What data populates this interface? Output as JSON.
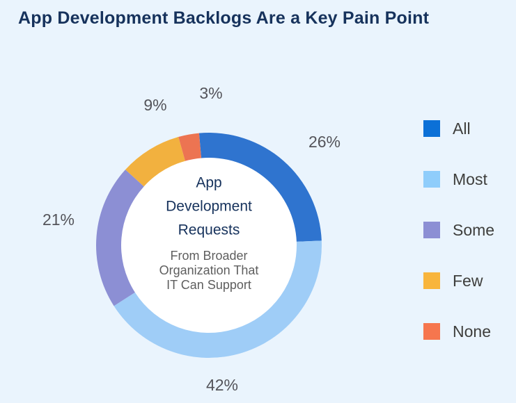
{
  "chart_data": {
    "type": "pie",
    "title": "App Development Backlogs Are a Key Pain Point",
    "center_title": [
      "App",
      "Development",
      "Requests"
    ],
    "center_subtitle": [
      "From Broader",
      "Organization That",
      "IT Can Support"
    ],
    "categories": [
      "All",
      "Most",
      "Some",
      "Few",
      "None"
    ],
    "values": [
      26,
      42,
      21,
      9,
      3
    ],
    "value_labels": [
      "26%",
      "42%",
      "21%",
      "9%",
      "3%"
    ],
    "colors": [
      "#2f74cf",
      "#9fcdf7",
      "#8c8fd4",
      "#f2b13f",
      "#ec7452"
    ],
    "legend_colors": [
      "#0b70d7",
      "#8fcdfb",
      "#8c8fd4",
      "#f8b53c",
      "#f6764e"
    ],
    "legend_position": "right"
  }
}
